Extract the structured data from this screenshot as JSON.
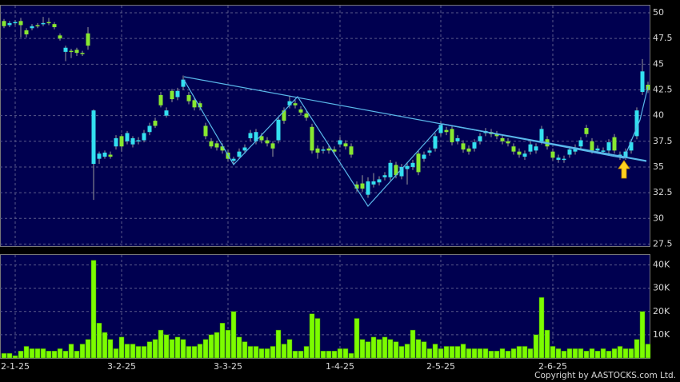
{
  "chart_data": [
    {
      "type": "candlestick",
      "open": [
        49.2,
        48.8,
        49.0,
        49.2,
        48.3,
        48.5,
        48.8,
        48.9,
        49.1,
        48.9,
        47.8,
        46.2,
        46.3,
        46.4,
        46.1,
        48.0,
        35.3,
        35.8,
        36.0,
        36.2,
        37.0,
        38.0,
        37.5,
        37.2,
        37.5,
        37.6,
        38.4,
        39.5,
        42.0,
        40.0,
        42.4,
        41.8,
        42.8,
        42.0,
        41.5,
        41.2,
        39.0,
        37.5,
        37.3,
        37.0,
        36.4,
        35.6,
        36.0,
        36.6,
        37.8,
        37.5,
        38.0,
        37.6,
        37.3,
        37.6,
        40.5,
        41.0,
        41.2,
        40.6,
        40.2,
        38.9,
        36.8,
        36.6,
        36.8,
        36.7,
        37.2,
        37.3,
        37.0,
        33.3,
        33.4,
        32.3,
        33.3,
        33.5,
        34.0,
        34.0,
        35.2,
        34.1,
        34.8,
        35.0,
        36.3,
        35.8,
        36.4,
        36.8,
        38.3,
        38.6,
        38.7,
        37.5,
        37.3,
        36.8,
        36.8,
        37.5,
        38.3,
        38.4,
        38.2,
        37.8,
        37.5,
        37.0,
        36.5,
        36.0,
        36.5,
        36.6,
        37.5,
        37.7,
        36.5,
        35.7,
        35.7,
        36.2,
        36.5,
        37.0,
        38.8,
        37.5,
        36.6,
        36.5,
        36.6,
        37.9,
        36.0,
        36.0,
        36.6,
        38.0,
        42.3,
        43.0
      ],
      "high": [
        49.4,
        49.2,
        49.3,
        49.5,
        48.5,
        48.9,
        49.0,
        49.6,
        49.5,
        49.1,
        48.0,
        46.8,
        46.5,
        46.6,
        46.3,
        48.6,
        40.6,
        36.5,
        36.6,
        36.5,
        38.1,
        38.2,
        38.5,
        38.0,
        37.9,
        38.6,
        39.3,
        39.8,
        42.3,
        40.8,
        42.6,
        42.7,
        43.9,
        42.3,
        41.7,
        41.4,
        39.3,
        37.8,
        37.5,
        37.3,
        36.7,
        36.0,
        36.8,
        37.2,
        38.6,
        38.7,
        38.3,
        37.9,
        37.5,
        39.9,
        40.8,
        41.9,
        41.5,
        40.9,
        40.5,
        39.2,
        37.1,
        37.0,
        37.1,
        37.0,
        37.9,
        37.6,
        37.3,
        33.6,
        34.2,
        34.0,
        34.4,
        34.1,
        34.5,
        35.7,
        35.5,
        35.3,
        35.4,
        35.7,
        36.6,
        36.5,
        36.9,
        38.3,
        39.4,
        38.9,
        39.0,
        38.1,
        37.6,
        37.1,
        37.7,
        38.3,
        38.8,
        38.7,
        38.5,
        38.1,
        37.8,
        37.3,
        36.8,
        36.6,
        37.5,
        37.3,
        39.0,
        38.0,
        36.8,
        36.2,
        36.1,
        37.0,
        37.2,
        37.9,
        39.1,
        37.8,
        37.1,
        36.9,
        37.7,
        38.2,
        36.5,
        36.8,
        37.7,
        40.8,
        45.5,
        43.3
      ],
      "low": [
        48.5,
        48.6,
        48.8,
        47.6,
        47.6,
        48.3,
        48.5,
        48.7,
        48.8,
        48.4,
        47.3,
        45.3,
        45.6,
        45.8,
        45.8,
        46.4,
        31.8,
        35.3,
        35.8,
        35.8,
        36.7,
        36.5,
        37.2,
        36.9,
        37.2,
        37.4,
        38.1,
        38.8,
        40.8,
        39.8,
        41.3,
        41.5,
        42.5,
        41.1,
        40.5,
        40.5,
        37.7,
        36.8,
        36.6,
        36.3,
        35.5,
        35.3,
        35.8,
        36.3,
        37.5,
        37.2,
        37.3,
        37.0,
        36.0,
        37.3,
        39.2,
        40.7,
        40.7,
        40.0,
        39.5,
        36.3,
        35.8,
        36.3,
        36.3,
        36.2,
        36.9,
        36.7,
        35.9,
        32.6,
        32.6,
        32.0,
        33.0,
        33.2,
        33.7,
        33.7,
        33.9,
        33.8,
        33.3,
        34.7,
        34.2,
        35.5,
        36.1,
        36.5,
        38.0,
        38.1,
        37.1,
        37.2,
        36.4,
        36.2,
        36.5,
        37.2,
        38.0,
        37.9,
        37.7,
        37.2,
        37.0,
        36.2,
        35.9,
        35.7,
        36.2,
        36.3,
        37.2,
        36.7,
        35.6,
        35.4,
        35.4,
        35.9,
        36.2,
        36.7,
        37.9,
        36.3,
        36.3,
        36.2,
        36.3,
        36.3,
        35.7,
        35.7,
        36.3,
        37.7,
        42.0,
        42.2
      ],
      "close": [
        48.7,
        49.0,
        49.1,
        48.8,
        47.9,
        48.7,
        48.7,
        49.0,
        49.0,
        48.6,
        47.5,
        46.6,
        46.2,
        46.1,
        46.0,
        46.8,
        40.5,
        36.3,
        36.4,
        36.0,
        37.8,
        37.0,
        38.3,
        37.8,
        37.6,
        38.3,
        39.0,
        39.0,
        41.0,
        40.5,
        41.6,
        42.4,
        43.5,
        41.4,
        40.8,
        40.8,
        38.0,
        37.0,
        36.9,
        36.6,
        35.8,
        35.8,
        36.5,
        36.9,
        38.3,
        38.4,
        37.6,
        37.3,
        36.8,
        39.6,
        39.5,
        41.4,
        41.0,
        40.3,
        39.8,
        36.6,
        36.4,
        36.7,
        36.6,
        36.5,
        37.6,
        37.0,
        36.2,
        32.9,
        32.9,
        33.6,
        33.6,
        33.8,
        34.2,
        35.4,
        34.2,
        35.0,
        35.1,
        35.4,
        34.5,
        36.2,
        36.6,
        38.0,
        39.1,
        38.4,
        37.4,
        37.8,
        36.7,
        36.5,
        37.4,
        38.0,
        38.5,
        38.2,
        38.0,
        37.5,
        37.3,
        36.5,
        36.2,
        36.3,
        37.2,
        37.0,
        38.7,
        37.0,
        35.9,
        35.9,
        35.8,
        36.7,
        36.9,
        37.6,
        38.2,
        36.6,
        36.8,
        36.6,
        37.4,
        36.6,
        36.2,
        36.5,
        37.4,
        40.5,
        44.3,
        42.5
      ],
      "up_color": "#33e0f0",
      "down_color": "#88e830",
      "ylim": [
        27.3,
        50.7
      ],
      "yticks": [
        27.5,
        30,
        32.5,
        35,
        37.5,
        40,
        42.5,
        45,
        47.5,
        50
      ],
      "grid": true
    },
    {
      "type": "bar",
      "categories": [
        null,
        null,
        "2-1-25",
        null,
        null,
        null,
        null,
        null,
        null,
        null,
        null,
        null,
        null,
        null,
        null,
        null,
        null,
        null,
        null,
        null,
        null,
        "3-2-25",
        null,
        null,
        null,
        null,
        null,
        null,
        null,
        null,
        null,
        null,
        null,
        null,
        null,
        null,
        null,
        null,
        null,
        null,
        "3-3-25",
        null,
        null,
        null,
        null,
        null,
        null,
        null,
        null,
        null,
        null,
        null,
        null,
        null,
        null,
        null,
        null,
        null,
        null,
        null,
        "1-4-25",
        null,
        null,
        null,
        null,
        null,
        null,
        null,
        null,
        null,
        null,
        null,
        null,
        null,
        null,
        null,
        null,
        null,
        "2-5-25",
        null,
        null,
        null,
        null,
        null,
        null,
        null,
        null,
        null,
        null,
        null,
        null,
        null,
        null,
        null,
        null,
        null,
        null,
        null,
        "2-6-25",
        null,
        null,
        null,
        null,
        null,
        null,
        null,
        null,
        null,
        null,
        null,
        null,
        null,
        null,
        null,
        null,
        null
      ],
      "values": [
        2000,
        2000,
        1000,
        3000,
        5000,
        4000,
        4000,
        4000,
        3000,
        3000,
        4000,
        3000,
        6000,
        3000,
        6000,
        8000,
        42000,
        15000,
        11000,
        8000,
        4000,
        9000,
        6000,
        6000,
        5000,
        5000,
        7000,
        8000,
        12000,
        10000,
        8000,
        9000,
        8000,
        5000,
        5000,
        6000,
        8000,
        10000,
        11000,
        15000,
        12000,
        20000,
        9000,
        7000,
        5000,
        5000,
        4000,
        4000,
        5000,
        12000,
        6000,
        8000,
        3000,
        3000,
        5000,
        19000,
        17000,
        3000,
        3000,
        3000,
        4000,
        4000,
        2000,
        17000,
        8000,
        7000,
        9000,
        8000,
        9000,
        8000,
        7000,
        5000,
        6000,
        12000,
        8000,
        7000,
        4000,
        6000,
        4000,
        5000,
        5000,
        5000,
        6000,
        4000,
        4000,
        4000,
        4000,
        3000,
        3000,
        4000,
        3000,
        4000,
        5000,
        5000,
        4000,
        10000,
        26000,
        12000,
        5000,
        4000,
        3000,
        4000,
        4000,
        4000,
        3000,
        4000,
        3000,
        4000,
        3000,
        4000,
        5000,
        4000,
        4000,
        8000,
        20000,
        6000
      ],
      "color": "#7cfc00",
      "ylim": [
        0,
        44300
      ],
      "yticks": [
        {
          "value": 10000,
          "label": "10K"
        },
        {
          "value": 20000,
          "label": "20K"
        },
        {
          "value": 30000,
          "label": "30K"
        },
        {
          "value": 40000,
          "label": "40K"
        }
      ],
      "grid": true,
      "footer": "Copyright by AASTOCKS.com Ltd."
    }
  ]
}
